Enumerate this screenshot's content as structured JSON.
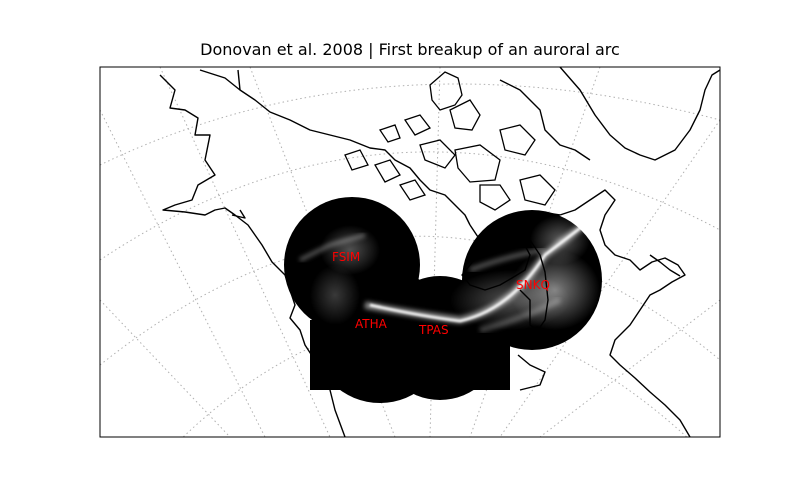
{
  "title": "Donovan et al. 2008 | First breakup of an auroral arc",
  "stations": [
    {
      "name": "FSIM"
    },
    {
      "name": "ATHA"
    },
    {
      "name": "TPAS"
    },
    {
      "name": "SNKQ"
    }
  ],
  "colors": {
    "label": "#ff0000",
    "coast": "#000000",
    "grid": "#b0b0b0",
    "frame": "#000000",
    "sky": "#000000",
    "aurora": "#ffffff"
  },
  "icons": {
    "map": "map-of-north-america",
    "grid": "lat-lon-graticule"
  }
}
